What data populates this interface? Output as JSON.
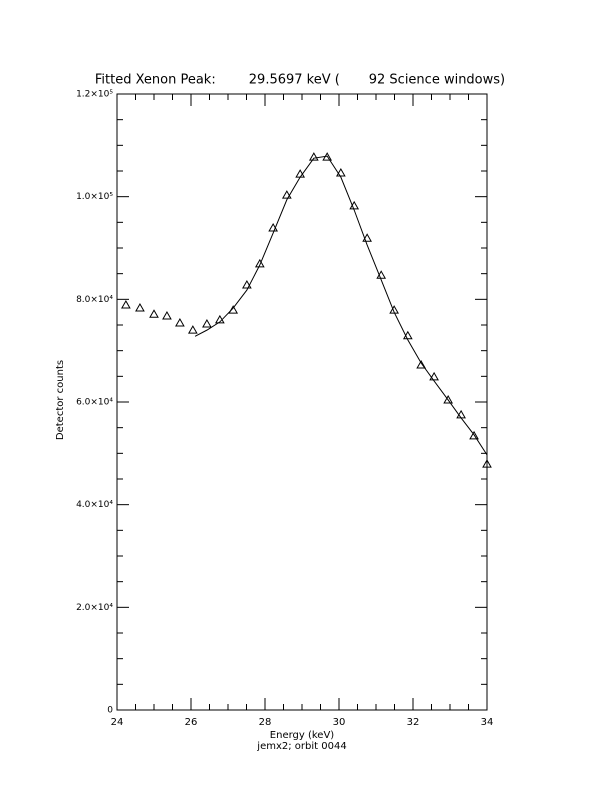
{
  "chart_data": {
    "type": "scatter",
    "title": "Fitted Xenon Peak:        29.5697 keV (       92 Science windows)",
    "x_label": "Energy (keV)",
    "subtitle": "jemx2; orbit 0044",
    "y_label": "Detector counts",
    "xlim": [
      24,
      34
    ],
    "ylim": [
      0,
      120000
    ],
    "xticks": [
      24,
      26,
      28,
      30,
      32,
      34
    ],
    "xminorticks": [
      24.5,
      25,
      25.5,
      26.5,
      27,
      27.5,
      28.5,
      29,
      29.5,
      30.5,
      31,
      31.5,
      32.5,
      33,
      33.5
    ],
    "yticks": [
      0,
      {
        "value": 20000,
        "label": "2.0×10⁴"
      },
      {
        "value": 40000,
        "label": "4.0×10⁴"
      },
      {
        "value": 60000,
        "label": "6.0×10⁴"
      },
      {
        "value": 80000,
        "label": "8.0×10⁴"
      },
      {
        "value": 100000,
        "label": "1.0×10⁵"
      },
      {
        "value": 120000,
        "label": "1.2×10⁵"
      }
    ],
    "yminorticks": [
      5000,
      10000,
      15000,
      25000,
      30000,
      35000,
      45000,
      50000,
      55000,
      65000,
      70000,
      75000,
      85000,
      90000,
      95000,
      105000,
      110000,
      115000
    ],
    "series": [
      {
        "name": "Data",
        "color": "#000000",
        "marker": "triangle",
        "x": [
          24.24,
          24.62,
          25.0,
          25.35,
          25.7,
          26.05,
          26.43,
          26.78,
          27.14,
          27.51,
          27.86,
          28.22,
          28.59,
          28.95,
          29.32,
          29.68,
          30.05,
          30.41,
          30.76,
          31.14,
          31.49,
          31.86,
          32.22,
          32.57,
          32.95,
          33.3,
          33.65,
          34.0
        ],
        "values": [
          78900,
          78300,
          77100,
          76750,
          75400,
          74000,
          75200,
          76000,
          77900,
          82800,
          86900,
          93900,
          100300,
          104400,
          107700,
          107700,
          104600,
          98200,
          91900,
          84700,
          77900,
          72900,
          67200,
          64900,
          60400,
          57500,
          53400,
          47900
        ]
      },
      {
        "name": "Fit",
        "color": "#000000",
        "marker": "line",
        "x": [
          26.11,
          26.43,
          26.78,
          27.14,
          27.51,
          27.86,
          28.22,
          28.59,
          28.95,
          29.32,
          29.68,
          30.05,
          30.41,
          30.76,
          31.14,
          31.49,
          31.86,
          32.22,
          32.57,
          32.95,
          33.3,
          33.65,
          34.0
        ],
        "values": [
          72800,
          74000,
          75600,
          78300,
          81800,
          86700,
          92900,
          99400,
          103800,
          107500,
          107900,
          103800,
          97400,
          90600,
          83800,
          77500,
          72100,
          67600,
          64100,
          60400,
          56900,
          53600,
          49700
        ]
      }
    ]
  }
}
